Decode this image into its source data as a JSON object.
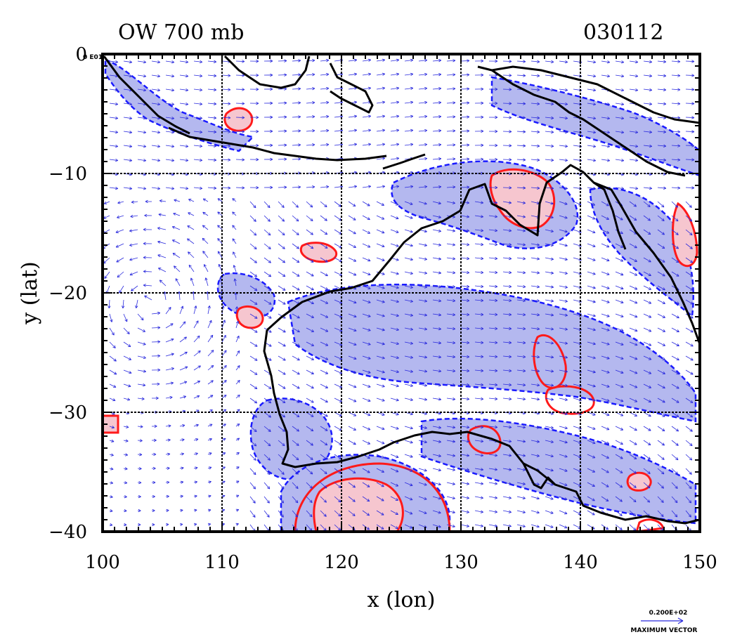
{
  "header": {
    "title_left": "OW 700 mb",
    "title_right": "030112"
  },
  "corner_label": "0 E01",
  "axes": {
    "xlabel": "x (lon)",
    "ylabel": "y (lat)",
    "xticks": [
      "100",
      "110",
      "120",
      "130",
      "140",
      "150"
    ],
    "yticks": [
      "0",
      "−10",
      "−20",
      "−30",
      "−40"
    ],
    "x_range": [
      100,
      150
    ],
    "y_range": [
      -40,
      0
    ]
  },
  "reference_vector": {
    "value": "0.200E+02",
    "label": "MAXIMUM VECTOR"
  },
  "colors": {
    "positive_contour": "#ff1a1a",
    "positive_fill": "#f6c6cf",
    "negative_contour": "#1a1aff",
    "negative_fill": "#b4b8ef",
    "vector": "#2b2bdd",
    "coast": "#000000",
    "grid": "#000000"
  },
  "map": {
    "region": "Australia and Maritime Continent",
    "grid": true,
    "grid_lon": [
      110,
      120,
      130,
      140
    ],
    "grid_lat": [
      -10,
      -20,
      -30
    ]
  }
}
